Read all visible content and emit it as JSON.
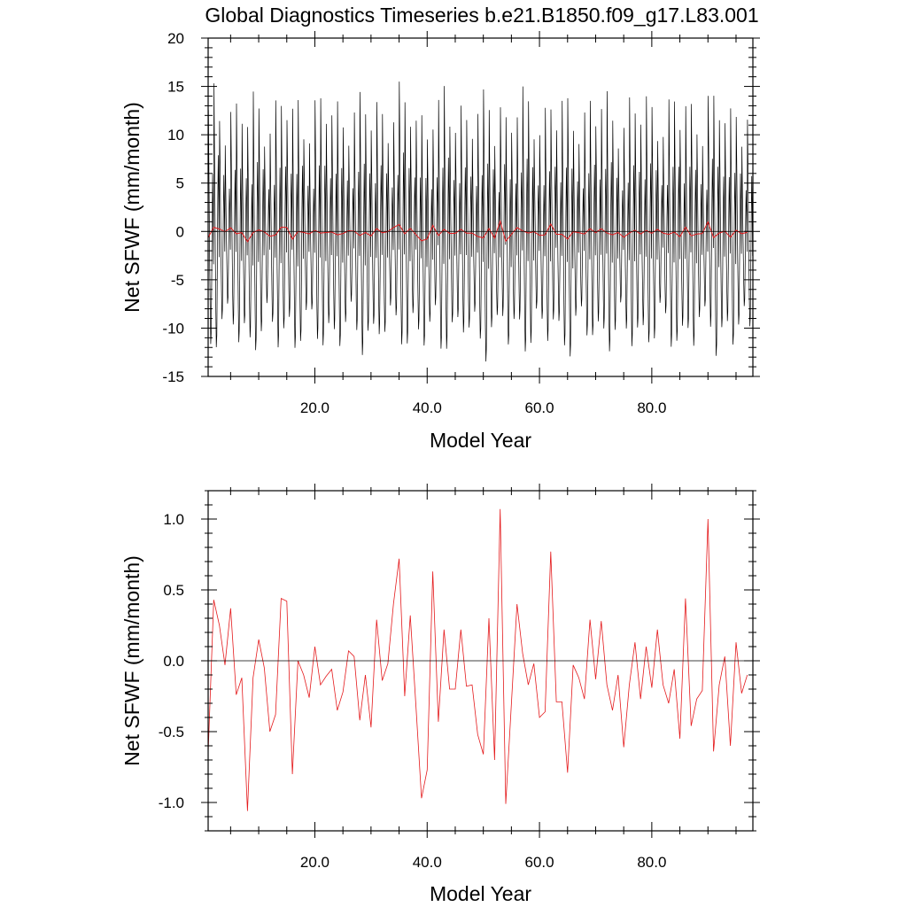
{
  "figure": {
    "title": "Global Diagnostics Timeseries b.e21.B1850.f09_g17.L83.001"
  },
  "colors": {
    "monthly_series": "#000000",
    "annual_series": "#e41a1c",
    "zero_line": "#000000"
  },
  "chart_data": [
    {
      "type": "line",
      "title": "",
      "xlabel": "Model Year",
      "ylabel": "Net SFWF (mm/month)",
      "xlim": [
        1,
        98
      ],
      "ylim": [
        -15,
        20
      ],
      "xticks": [
        20,
        40,
        60,
        80
      ],
      "xtick_labels": [
        "20.0",
        "40.0",
        "60.0",
        "80.0"
      ],
      "yticks": [
        -15,
        -10,
        -5,
        0,
        5,
        10,
        15,
        20
      ],
      "ytick_labels": [
        "-15",
        "-10",
        "-5",
        "0",
        "5",
        "10",
        "15",
        "20"
      ],
      "grid": false,
      "reference_line": 0,
      "monthly_pattern": [
        12.0,
        7.0,
        2.0,
        -3.0,
        -7.0,
        -10.0,
        -9.0,
        -4.0,
        2.0,
        6.0,
        3.0,
        -2.5
      ],
      "series": [
        {
          "name": "",
          "kind": "monthly",
          "color": "#000000",
          "amplitude_min": -13.5,
          "amplitude_max": 15.5
        },
        {
          "name": "",
          "kind": "annual",
          "color": "#e41a1c",
          "ref": "annual_values"
        }
      ]
    },
    {
      "type": "line",
      "title": "",
      "xlabel": "Model Year",
      "ylabel": "Net SFWF (mm/month)",
      "xlim": [
        1,
        98
      ],
      "ylim": [
        -1.2,
        1.2
      ],
      "xticks": [
        20,
        40,
        60,
        80
      ],
      "xtick_labels": [
        "20.0",
        "40.0",
        "60.0",
        "80.0"
      ],
      "yticks": [
        -1.0,
        -0.5,
        0.0,
        0.5,
        1.0
      ],
      "ytick_labels": [
        "-1.0",
        "-0.5",
        "0.0",
        "0.5",
        "1.0"
      ],
      "grid": false,
      "reference_line": 0,
      "series": [
        {
          "name": "",
          "color": "#e41a1c",
          "x_start": 1,
          "values": [
            -0.65,
            0.43,
            0.25,
            -0.03,
            0.37,
            -0.24,
            -0.12,
            -1.06,
            -0.12,
            0.15,
            -0.05,
            -0.5,
            -0.38,
            0.44,
            0.42,
            -0.8,
            0.0,
            -0.1,
            -0.26,
            0.1,
            -0.17,
            -0.11,
            -0.06,
            -0.35,
            -0.22,
            0.07,
            0.03,
            -0.42,
            -0.1,
            -0.47,
            0.29,
            -0.14,
            -0.02,
            0.4,
            0.72,
            -0.25,
            0.32,
            -0.32,
            -0.97,
            -0.77,
            0.63,
            -0.43,
            0.22,
            -0.2,
            -0.2,
            0.22,
            -0.18,
            -0.17,
            -0.52,
            -0.66,
            0.3,
            -0.7,
            1.07,
            -1.01,
            -0.3,
            0.4,
            0.05,
            -0.17,
            -0.02,
            -0.4,
            -0.36,
            0.77,
            -0.29,
            -0.29,
            -0.79,
            -0.03,
            -0.12,
            -0.27,
            0.29,
            -0.13,
            0.28,
            -0.17,
            -0.35,
            -0.1,
            -0.61,
            -0.17,
            0.13,
            -0.27,
            0.1,
            -0.19,
            0.22,
            -0.17,
            -0.3,
            -0.06,
            -0.55,
            0.44,
            -0.46,
            -0.27,
            -0.21,
            1.0,
            -0.64,
            -0.17,
            0.03,
            -0.6,
            0.13,
            -0.23,
            -0.1
          ]
        }
      ]
    }
  ]
}
